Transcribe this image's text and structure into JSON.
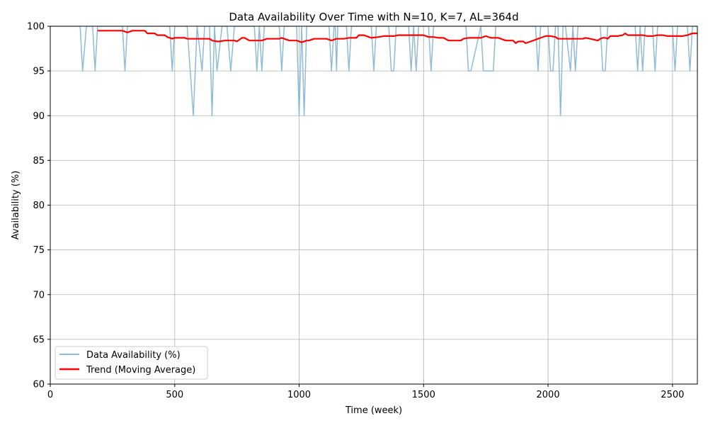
{
  "chart_data": {
    "type": "line",
    "title": "Data Availability Over Time with N=10, K=7, AL=364d",
    "xlabel": "Time (week)",
    "ylabel": "Availability (%)",
    "xlim": [
      0,
      2600
    ],
    "ylim": [
      60,
      100
    ],
    "x_ticks": [
      0,
      500,
      1000,
      1500,
      2000,
      2500
    ],
    "y_ticks": [
      60,
      65,
      70,
      75,
      80,
      85,
      90,
      95,
      100
    ],
    "grid": true,
    "legend_position": "lower-left",
    "series": [
      {
        "name": "Data Availability (%)",
        "color": "#8fbbd9",
        "x": [
          0,
          120,
          130,
          145,
          170,
          180,
          190,
          290,
          300,
          310,
          480,
          490,
          500,
          510,
          550,
          575,
          590,
          610,
          620,
          640,
          650,
          660,
          670,
          690,
          710,
          725,
          740,
          820,
          830,
          840,
          850,
          860,
          920,
          930,
          940,
          990,
          1000,
          1010,
          1020,
          1030,
          1040,
          1120,
          1130,
          1140,
          1145,
          1150,
          1155,
          1165,
          1190,
          1200,
          1210,
          1290,
          1300,
          1310,
          1360,
          1370,
          1380,
          1390,
          1440,
          1450,
          1460,
          1470,
          1480,
          1520,
          1530,
          1540,
          1670,
          1680,
          1690,
          1730,
          1740,
          1780,
          1790,
          1950,
          1960,
          1970,
          2000,
          2010,
          2020,
          2030,
          2040,
          2050,
          2060,
          2070,
          2090,
          2100,
          2110,
          2120,
          2210,
          2220,
          2230,
          2240,
          2350,
          2360,
          2370,
          2380,
          2390,
          2420,
          2430,
          2440,
          2500,
          2510,
          2520,
          2560,
          2570,
          2580,
          2600
        ],
        "y": [
          100,
          100,
          95,
          100,
          100,
          95,
          100,
          100,
          95,
          100,
          100,
          95,
          100,
          100,
          100,
          90,
          100,
          95,
          100,
          100,
          90,
          100,
          95,
          100,
          100,
          95,
          100,
          100,
          95,
          100,
          95,
          100,
          100,
          95,
          100,
          100,
          90,
          100,
          90,
          100,
          100,
          100,
          95,
          100,
          100,
          95,
          100,
          100,
          100,
          95,
          100,
          100,
          95,
          100,
          100,
          95,
          95,
          100,
          100,
          95,
          100,
          95,
          100,
          100,
          95,
          100,
          100,
          95,
          95,
          100,
          95,
          95,
          100,
          100,
          95,
          100,
          100,
          95,
          95,
          100,
          100,
          90,
          100,
          100,
          95,
          100,
          95,
          100,
          100,
          95,
          95,
          100,
          100,
          95,
          100,
          95,
          100,
          100,
          95,
          100,
          100,
          95,
          100,
          100,
          95,
          100,
          100
        ]
      },
      {
        "name": "Trend (Moving Average)",
        "color": "#ff0000",
        "x": [
          190,
          200,
          290,
          310,
          330,
          380,
          390,
          420,
          430,
          460,
          470,
          490,
          500,
          510,
          540,
          550,
          580,
          600,
          640,
          650,
          670,
          680,
          700,
          740,
          750,
          770,
          780,
          800,
          820,
          850,
          870,
          920,
          930,
          940,
          960,
          990,
          1010,
          1030,
          1040,
          1060,
          1110,
          1130,
          1150,
          1180,
          1200,
          1230,
          1240,
          1260,
          1280,
          1290,
          1320,
          1340,
          1380,
          1400,
          1480,
          1500,
          1520,
          1540,
          1560,
          1580,
          1600,
          1620,
          1650,
          1660,
          1680,
          1700,
          1730,
          1750,
          1770,
          1780,
          1800,
          1830,
          1860,
          1870,
          1880,
          1900,
          1910,
          1930,
          1960,
          1990,
          2010,
          2030,
          2040,
          2050,
          2060,
          2100,
          2140,
          2150,
          2170,
          2200,
          2210,
          2220,
          2230,
          2240,
          2250,
          2280,
          2300,
          2310,
          2320,
          2350,
          2360,
          2380,
          2400,
          2420,
          2440,
          2460,
          2480,
          2520,
          2540,
          2560,
          2580,
          2600
        ],
        "y": [
          99.5,
          99.5,
          99.5,
          99.3,
          99.5,
          99.5,
          99.2,
          99.2,
          99.0,
          99.0,
          98.8,
          98.6,
          98.7,
          98.7,
          98.7,
          98.6,
          98.6,
          98.6,
          98.6,
          98.4,
          98.3,
          98.3,
          98.4,
          98.4,
          98.3,
          98.7,
          98.7,
          98.4,
          98.4,
          98.4,
          98.6,
          98.6,
          98.7,
          98.6,
          98.4,
          98.4,
          98.2,
          98.4,
          98.4,
          98.6,
          98.6,
          98.4,
          98.6,
          98.6,
          98.7,
          98.7,
          99.0,
          99.0,
          98.8,
          98.7,
          98.8,
          98.9,
          98.9,
          99.0,
          99.0,
          99.0,
          98.8,
          98.8,
          98.7,
          98.7,
          98.4,
          98.4,
          98.4,
          98.6,
          98.7,
          98.7,
          98.7,
          98.9,
          98.7,
          98.7,
          98.7,
          98.4,
          98.4,
          98.1,
          98.3,
          98.3,
          98.1,
          98.3,
          98.6,
          98.9,
          98.9,
          98.8,
          98.6,
          98.6,
          98.6,
          98.6,
          98.6,
          98.7,
          98.6,
          98.4,
          98.6,
          98.7,
          98.7,
          98.6,
          98.9,
          98.9,
          99.0,
          99.2,
          99.0,
          99.0,
          99.0,
          99.0,
          98.9,
          98.9,
          99.0,
          99.0,
          98.9,
          98.9,
          98.9,
          99.0,
          99.2,
          99.2
        ]
      }
    ]
  }
}
